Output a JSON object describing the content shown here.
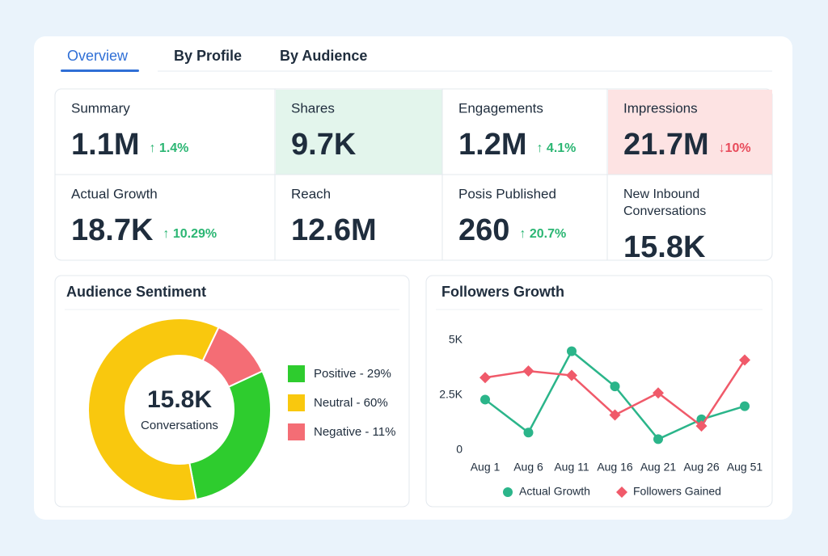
{
  "tabs": [
    "Overview",
    "By Profile",
    "By Audience"
  ],
  "active_tab_color": "#2f6fd6",
  "metrics": [
    [
      {
        "label": "Summary",
        "value": "1.1M",
        "change": "↑ 1.4%",
        "change_color": "#2bb673"
      },
      {
        "label": "Shares",
        "value": "9.7K",
        "background": "#e3f5ec"
      },
      {
        "label": "Engagements",
        "value": "1.2M",
        "change": "↑ 4.1%",
        "change_color": "#2bb673"
      },
      {
        "label": "Impressions",
        "value": "21.7M",
        "change": "↓10%",
        "change_color": "#e84b5b",
        "background": "#fde3e3"
      }
    ],
    [
      {
        "label": "Actual Growth",
        "value": "18.7K",
        "change": "↑ 10.29%",
        "change_color": "#2bb673"
      },
      {
        "label": "Reach",
        "value": "12.6M"
      },
      {
        "label": "Posis Published",
        "value": "260",
        "change": "↑ 20.7%",
        "change_color": "#2bb673"
      },
      {
        "label": [
          "New Inbound",
          "Conversations"
        ],
        "value": "15.8K"
      }
    ]
  ],
  "chart_data": [
    {
      "type": "pie",
      "title": "Audience Sentiment",
      "annotations": [
        "15.8K",
        "Conversations"
      ],
      "categories": [
        "Positive - 29%",
        "Neutral - 60%",
        "Negative - 11%"
      ],
      "values": [
        29,
        60,
        11
      ],
      "colors": [
        "#2ecc2e",
        "#f9c80e",
        "#f46d75"
      ]
    },
    {
      "type": "line",
      "title": "Followers Growth",
      "categories": [
        "Aug 1",
        "Aug 6",
        "Aug 11",
        "Aug 16",
        "Aug 21",
        "Aug 26",
        "Aug 51"
      ],
      "ylim": [
        0,
        5000
      ],
      "yticks": [
        0,
        {
          "value": 2500,
          "label": "2.5K"
        },
        {
          "value": 5000,
          "label": "5K"
        }
      ],
      "series": [
        {
          "name": "Actual Growth",
          "color": "#2bb58a",
          "marker": "circle",
          "values": [
            2300,
            800,
            4500,
            2900,
            500,
            1400,
            2000
          ]
        },
        {
          "name": "Followers Gained",
          "color": "#f05a6a",
          "marker": "diamond",
          "values": [
            3300,
            3600,
            3400,
            1600,
            2600,
            1100,
            4100
          ]
        }
      ]
    }
  ]
}
